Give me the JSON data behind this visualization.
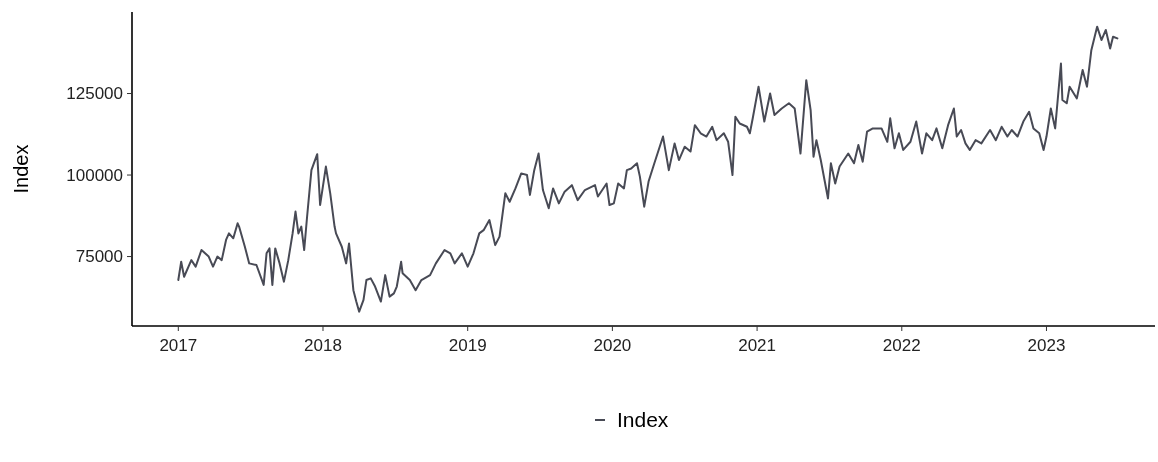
{
  "chart_data": {
    "type": "line",
    "ylabel": "Index",
    "xlim": [
      2016.68,
      2023.75
    ],
    "ylim": [
      53700,
      150000
    ],
    "xticks": [
      2017,
      2018,
      2019,
      2020,
      2021,
      2022,
      2023
    ],
    "yticks": [
      75000,
      100000,
      125000
    ],
    "grid": false,
    "legend": "bottom",
    "line_style": "solid",
    "x": [
      2017.0,
      2017.02,
      2017.04,
      2017.09,
      2017.12,
      2017.16,
      2017.21,
      2017.24,
      2017.27,
      2017.3,
      2017.33,
      2017.35,
      2017.38,
      2017.41,
      2017.42,
      2017.46,
      2017.49,
      2017.54,
      2017.59,
      2017.61,
      2017.63,
      2017.65,
      2017.67,
      2017.7,
      2017.73,
      2017.76,
      2017.79,
      2017.81,
      2017.83,
      2017.85,
      2017.87,
      2017.89,
      2017.92,
      2017.96,
      2017.98,
      2018.02,
      2018.05,
      2018.08,
      2018.09,
      2018.13,
      2018.16,
      2018.18,
      2018.21,
      2018.23,
      2018.25,
      2018.28,
      2018.3,
      2018.33,
      2018.36,
      2018.4,
      2018.43,
      2018.46,
      2018.49,
      2018.51,
      2018.54,
      2018.55,
      2018.6,
      2018.64,
      2018.68,
      2018.74,
      2018.78,
      2018.84,
      2018.88,
      2018.91,
      2018.96,
      2019.0,
      2019.04,
      2019.08,
      2019.11,
      2019.15,
      2019.19,
      2019.22,
      2019.26,
      2019.29,
      2019.33,
      2019.37,
      2019.41,
      2019.43,
      2019.46,
      2019.49,
      2019.52,
      2019.56,
      2019.59,
      2019.63,
      2019.67,
      2019.72,
      2019.76,
      2019.81,
      2019.88,
      2019.9,
      2019.96,
      2019.98,
      2020.01,
      2020.04,
      2020.08,
      2020.1,
      2020.13,
      2020.17,
      2020.19,
      2020.22,
      2020.25,
      2020.29,
      2020.35,
      2020.39,
      2020.43,
      2020.46,
      2020.5,
      2020.54,
      2020.57,
      2020.61,
      2020.65,
      2020.69,
      2020.72,
      2020.77,
      2020.8,
      2020.83,
      2020.85,
      2020.88,
      2020.93,
      2020.95,
      2020.97,
      2021.01,
      2021.05,
      2021.09,
      2021.12,
      2021.17,
      2021.22,
      2021.26,
      2021.3,
      2021.34,
      2021.37,
      2021.39,
      2021.41,
      2021.44,
      2021.49,
      2021.51,
      2021.54,
      2021.57,
      2021.63,
      2021.67,
      2021.7,
      2021.73,
      2021.76,
      2021.8,
      2021.86,
      2021.9,
      2021.92,
      2021.95,
      2021.98,
      2022.01,
      2022.06,
      2022.1,
      2022.14,
      2022.17,
      2022.21,
      2022.24,
      2022.28,
      2022.32,
      2022.36,
      2022.38,
      2022.41,
      2022.44,
      2022.47,
      2022.51,
      2022.55,
      2022.61,
      2022.65,
      2022.69,
      2022.73,
      2022.76,
      2022.8,
      2022.84,
      2022.88,
      2022.91,
      2022.95,
      2022.98,
      2023.0,
      2023.03,
      2023.06,
      2023.1,
      2023.11,
      2023.14,
      2023.16,
      2023.21,
      2023.25,
      2023.28,
      2023.31,
      2023.35,
      2023.38,
      2023.41,
      2023.44,
      2023.46,
      2023.49
    ],
    "series": [
      {
        "name": "Index",
        "color": "#484a55",
        "values": [
          67800,
          73400,
          68800,
          73900,
          71900,
          77000,
          75000,
          71900,
          75000,
          73900,
          80100,
          82100,
          80600,
          85200,
          84200,
          78000,
          72900,
          72400,
          66300,
          76000,
          77500,
          66300,
          77500,
          72900,
          67300,
          73900,
          82100,
          88800,
          82100,
          84200,
          77000,
          87200,
          101500,
          106400,
          90800,
          102600,
          94400,
          84200,
          82100,
          78000,
          72900,
          79000,
          64700,
          61200,
          58100,
          61700,
          67800,
          68300,
          65800,
          61200,
          69300,
          62700,
          63700,
          65800,
          73400,
          69900,
          67800,
          64700,
          67800,
          69300,
          72900,
          77000,
          76000,
          72900,
          76000,
          71900,
          76000,
          82100,
          83100,
          86200,
          78500,
          81100,
          94400,
          91800,
          95900,
          100500,
          100000,
          93900,
          101500,
          106600,
          95400,
          89800,
          95900,
          91300,
          94900,
          96900,
          92300,
          95400,
          96900,
          93400,
          97400,
          90800,
          91300,
          97400,
          95900,
          101500,
          102000,
          103600,
          99500,
          90300,
          98000,
          103600,
          111800,
          101500,
          109700,
          104600,
          108700,
          107200,
          115300,
          112800,
          111800,
          114800,
          110700,
          112800,
          110200,
          100000,
          117900,
          115800,
          114800,
          112800,
          117400,
          127100,
          116400,
          125000,
          118400,
          120400,
          122000,
          120400,
          106600,
          129100,
          119900,
          105600,
          110700,
          104600,
          92800,
          103600,
          97400,
          102600,
          106600,
          103600,
          109200,
          104100,
          113300,
          114300,
          114300,
          110200,
          117400,
          108200,
          112800,
          107700,
          110200,
          116400,
          106600,
          112800,
          110700,
          114300,
          108200,
          115300,
          120400,
          111800,
          113800,
          109700,
          107700,
          110700,
          109700,
          113800,
          110700,
          114800,
          111800,
          113800,
          111800,
          116400,
          119400,
          114300,
          112800,
          107700,
          111800,
          120400,
          114300,
          134200,
          123000,
          122000,
          127100,
          123500,
          132200,
          127100,
          138300,
          145500,
          141400,
          144500,
          138800,
          142400,
          141900
        ]
      }
    ]
  }
}
